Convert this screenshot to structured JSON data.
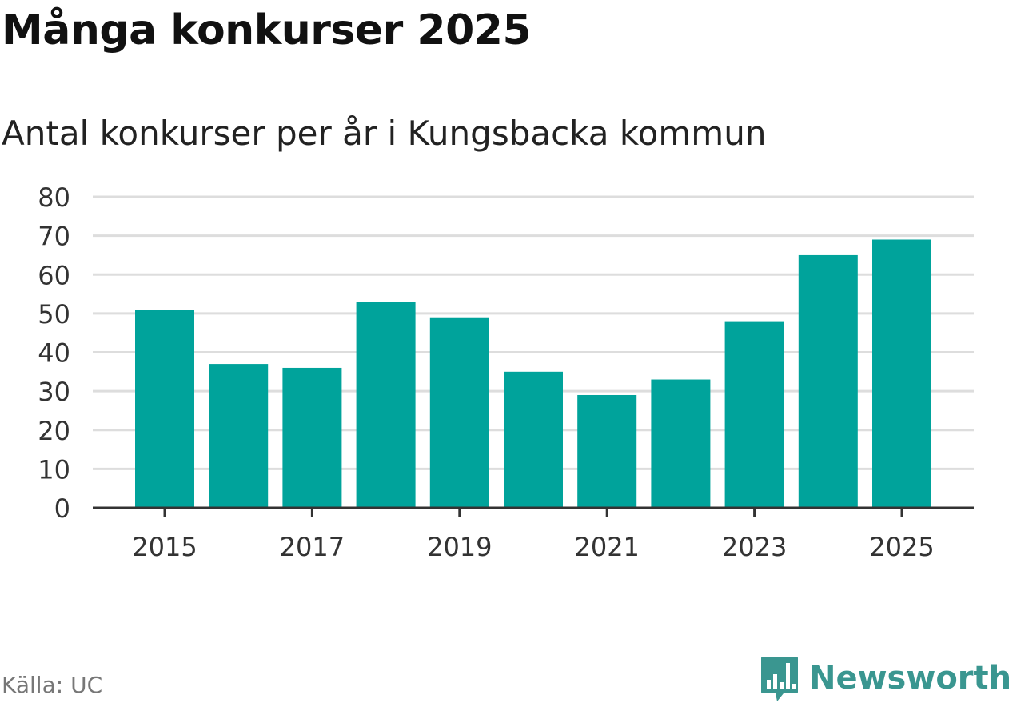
{
  "header": {
    "title": "Många konkurser 2025",
    "subtitle": "Antal konkurser per år i Kungsbacka kommun"
  },
  "footer": {
    "source": "Källa: UC",
    "brand": "Newsworthy",
    "brand_icon": "bar-chart-speech-bubble-icon"
  },
  "colors": {
    "bar": "#00a39b",
    "grid": "#dddddd",
    "axis": "#333333",
    "brand": "#3a9690"
  },
  "chart_data": {
    "type": "bar",
    "categories": [
      "2015",
      "2016",
      "2017",
      "2018",
      "2019",
      "2020",
      "2021",
      "2022",
      "2023",
      "2024",
      "2025"
    ],
    "values": [
      51,
      37,
      36,
      53,
      49,
      35,
      29,
      33,
      48,
      65,
      69
    ],
    "title": "Många konkurser 2025",
    "subtitle": "Antal konkurser per år i Kungsbacka kommun",
    "ylim": [
      0,
      80
    ],
    "yticks": [
      0,
      10,
      20,
      30,
      40,
      50,
      60,
      70,
      80
    ],
    "xtick_labels": [
      "2015",
      "2017",
      "2019",
      "2021",
      "2023",
      "2025"
    ],
    "grid": true,
    "legend": "none"
  }
}
